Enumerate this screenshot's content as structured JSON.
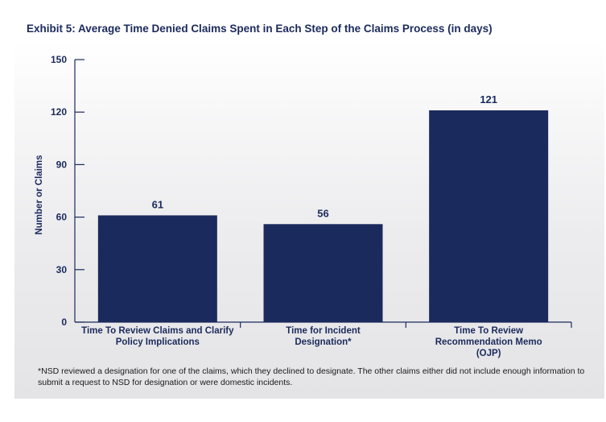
{
  "title": "Exhibit 5: Average Time Denied Claims Spent in Each Step of the Claims Process (in days)",
  "footnote": "*NSD reviewed a designation for one of the claims, which they declined to designate. The other claims either did not include enough information to submit a request to NSD for designation or were domestic incidents.",
  "colors": {
    "bar": "#1b2a5c",
    "axis": "#1b2a5c",
    "text": "#1b2a5c"
  },
  "chart_data": {
    "type": "bar",
    "title": "Exhibit 5: Average Time Denied Claims Spent in Each Step of the Claims Process (in days)",
    "xlabel": "",
    "ylabel": "Number or Claims",
    "ylim": [
      0,
      150
    ],
    "yticks": [
      0,
      30,
      60,
      90,
      120,
      150
    ],
    "grid": false,
    "categories": [
      [
        "Time To Review Claims and Clarify",
        "Policy Implications"
      ],
      [
        "Time for Incident",
        "Designation*"
      ],
      [
        "Time To Review",
        "Recommendation Memo",
        "(OJP)"
      ]
    ],
    "values": [
      61,
      56,
      121
    ],
    "data_labels": [
      "61",
      "56",
      "121"
    ]
  }
}
